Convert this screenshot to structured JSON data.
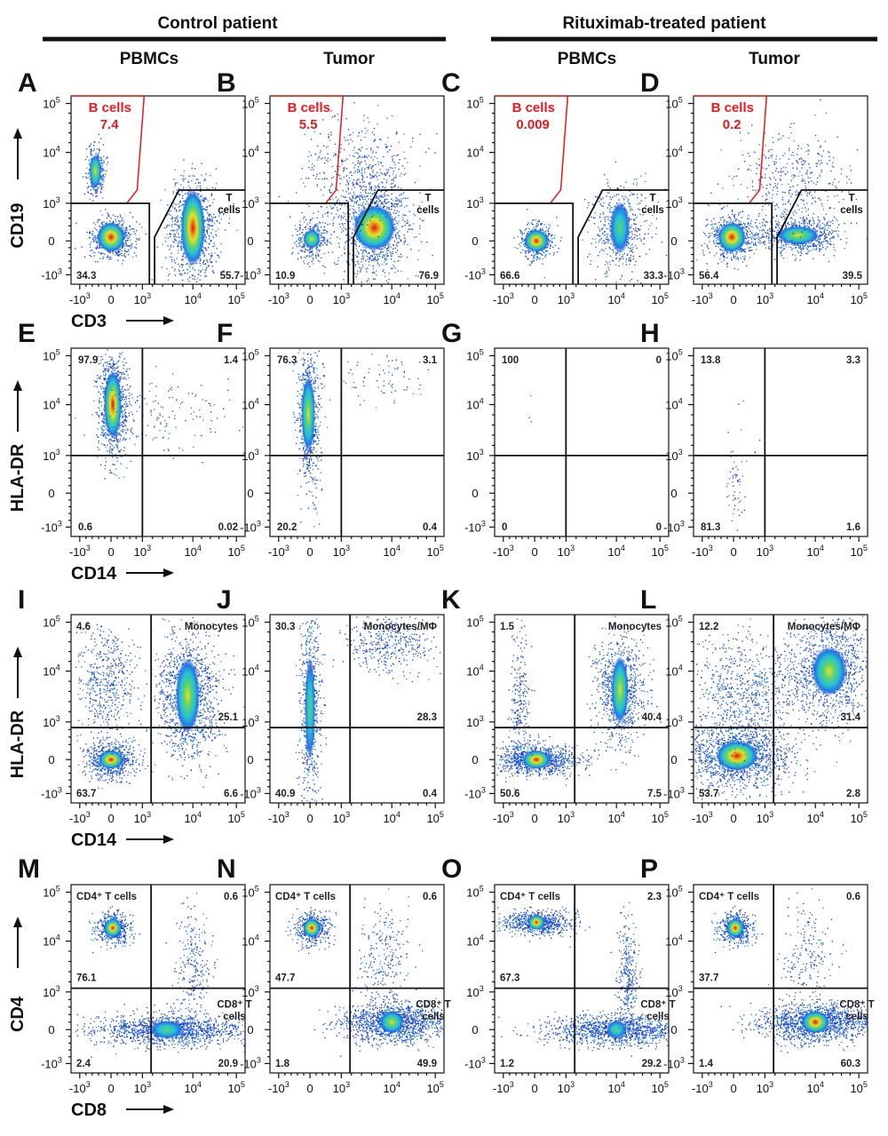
{
  "header": {
    "groups": [
      {
        "label": "Control patient"
      },
      {
        "label": "Rituximab-treated patient"
      }
    ],
    "columns": [
      "PBMCs",
      "Tumor",
      "PBMCs",
      "Tumor"
    ]
  },
  "axis_tick_labels": {
    "neg3": "-10",
    "zero": "0",
    "three": "10",
    "four": "10",
    "five": "10",
    "exp_neg3": "3",
    "exp_3": "3",
    "exp_4": "4",
    "exp_5": "5"
  },
  "rows": [
    {
      "ylabel": "CD19",
      "xlabel": "CD3",
      "panels": [
        {
          "letter": "A",
          "bcell": {
            "name": "B cells",
            "value": "7.4"
          },
          "tcell": "T\ncells",
          "bl": "34.3",
          "br": "55.7"
        },
        {
          "letter": "B",
          "bcell": {
            "name": "B cells",
            "value": "5.5"
          },
          "tcell": "T\ncells",
          "bl": "10.9",
          "br": "76.9"
        },
        {
          "letter": "C",
          "bcell": {
            "name": "B cells",
            "value": "0.009"
          },
          "tcell": "T\ncells",
          "bl": "66.6",
          "br": "33.3"
        },
        {
          "letter": "D",
          "bcell": {
            "name": "B cells",
            "value": "0.2"
          },
          "tcell": "T\ncells",
          "bl": "56.4",
          "br": "39.5"
        }
      ]
    },
    {
      "ylabel": "HLA-DR",
      "xlabel": "CD14",
      "panels": [
        {
          "letter": "E",
          "tl": "97.9",
          "tr": "1.4",
          "bl": "0.6",
          "br": "0.02"
        },
        {
          "letter": "F",
          "tl": "76.3",
          "tr": "3.1",
          "bl": "20.2",
          "br": "0.4"
        },
        {
          "letter": "G",
          "tl": "100",
          "tr": "0",
          "bl": "0",
          "br": "0"
        },
        {
          "letter": "H",
          "tl": "13.8",
          "tr": "3.3",
          "bl": "81.3",
          "br": "1.6"
        }
      ]
    },
    {
      "ylabel": "HLA-DR",
      "xlabel": "CD14",
      "panels": [
        {
          "letter": "I",
          "tl": "4.6",
          "gate": "Monocytes",
          "mr": "25.1",
          "bl": "63.7",
          "br": "6.6"
        },
        {
          "letter": "J",
          "tl": "30.3",
          "gate": "Monocytes/MΦ",
          "mr": "28.3",
          "bl": "40.9",
          "br": "0.4"
        },
        {
          "letter": "K",
          "tl": "1.5",
          "gate": "Monocytes",
          "mr": "40.4",
          "bl": "50.6",
          "br": "7.5"
        },
        {
          "letter": "L",
          "tl": "12.2",
          "gate": "Monocytes/MΦ",
          "mr": "31.4",
          "bl": "53.7",
          "br": "2.8"
        }
      ]
    },
    {
      "ylabel": "CD4",
      "xlabel": "CD8",
      "panels": [
        {
          "letter": "M",
          "cd4": "CD4⁺ T cells",
          "tr": "0.6",
          "ml": "76.1",
          "cd8": "CD8⁺ T\ncells",
          "bl": "2.4",
          "br": "20.9"
        },
        {
          "letter": "N",
          "cd4": "CD4⁺ T cells",
          "tr": "0.6",
          "ml": "47.7",
          "cd8": "CD8⁺ T\ncells",
          "bl": "1.8",
          "br": "49.9"
        },
        {
          "letter": "O",
          "cd4": "CD4⁺ T cells",
          "tr": "2.3",
          "ml": "67.3",
          "cd8": "CD8⁺ T\ncells",
          "bl": "1.2",
          "br": "29.2"
        },
        {
          "letter": "P",
          "cd4": "CD4⁺ T cells",
          "tr": "0.6",
          "ml": "37.7",
          "cd8": "CD8⁺ T\ncells",
          "bl": "1.4",
          "br": "60.3"
        }
      ]
    }
  ],
  "density_colors": [
    "#1a37c8",
    "#1f7be0",
    "#26c0d6",
    "#5fd36a",
    "#e4e12a",
    "#f08a1c",
    "#d9121a"
  ],
  "gate_colors": {
    "b_cell_gate": "#e41a1c",
    "quadrant": "#111111"
  }
}
